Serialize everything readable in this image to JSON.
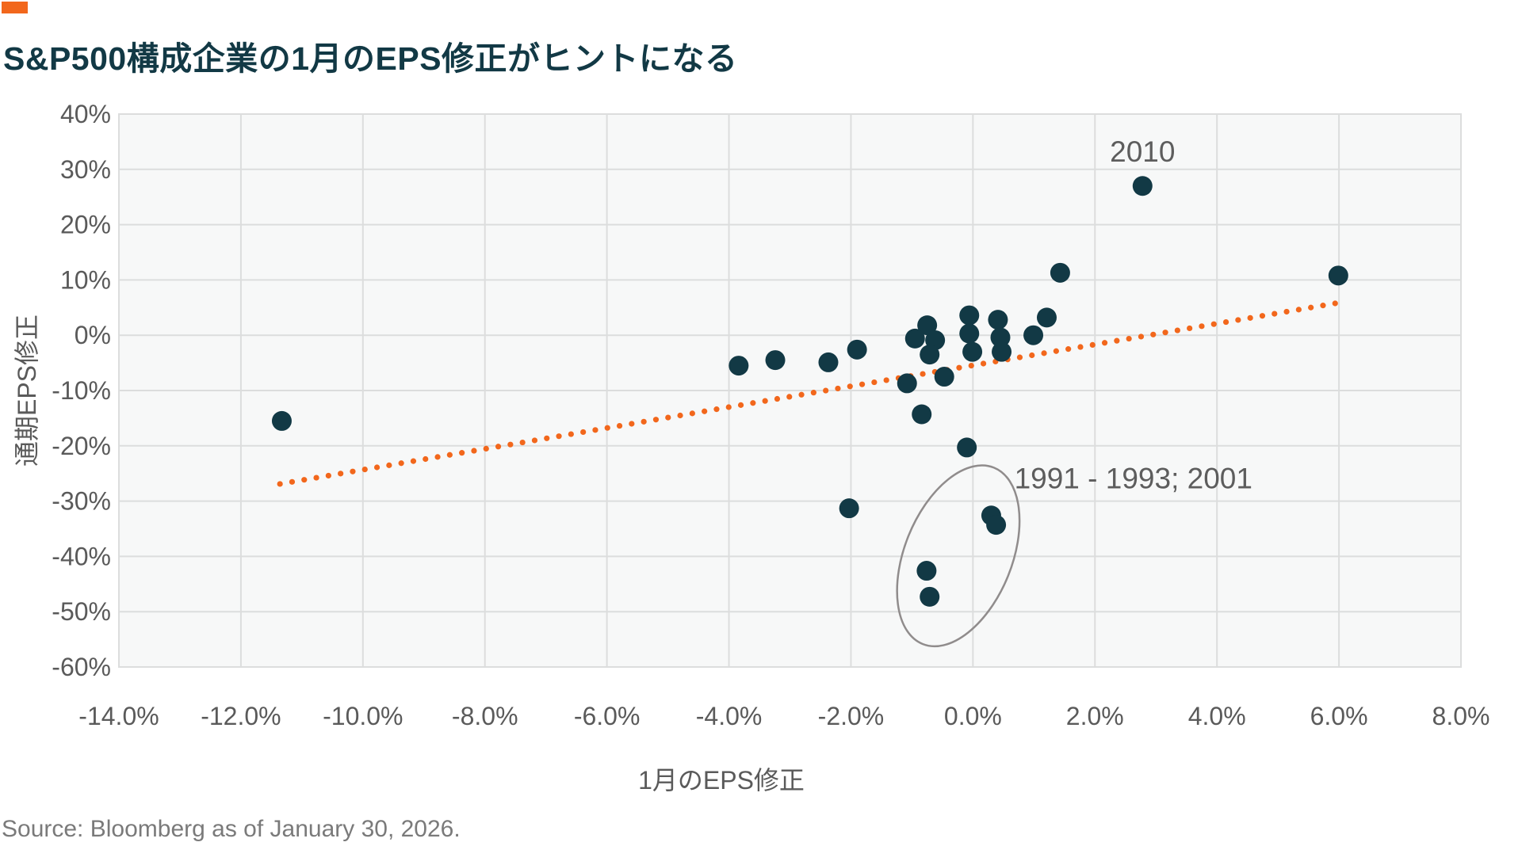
{
  "header": {
    "title": "S&P500構成企業の1月のEPS修正がヒントになる"
  },
  "source": "Source: Bloomberg as of January 30, 2026.",
  "colors": {
    "accent_orange": "#F2671C",
    "ink_navy": "#123945",
    "plot_bg": "#f7f8f8",
    "gridline": "#dcdddd",
    "axis_text": "#5a5a5a",
    "annotation_text": "#5d5d5d",
    "ellipse_stroke": "#908c8c",
    "source_text": "#7a7a7a"
  },
  "chart_data": {
    "type": "scatter",
    "title": "S&P500構成企業の1月のEPS修正がヒントになる",
    "xlabel": "1月のEPS修正",
    "ylabel": "通期EPS修正",
    "xlim": [
      -14,
      8
    ],
    "ylim": [
      -60,
      40
    ],
    "grid": true,
    "x_ticks": [
      -14,
      -12,
      -10,
      -8,
      -6,
      -4,
      -2,
      0,
      2,
      4,
      6,
      8
    ],
    "x_tick_labels": [
      "-14.0%",
      "-12.0%",
      "-10.0%",
      "-8.0%",
      "-6.0%",
      "-4.0%",
      "-2.0%",
      "0.0%",
      "2.0%",
      "4.0%",
      "6.0%",
      "8.0%"
    ],
    "y_ticks": [
      40,
      30,
      20,
      10,
      0,
      -10,
      -20,
      -30,
      -40,
      -50,
      -60
    ],
    "y_tick_labels": [
      "40%",
      "30%",
      "20%",
      "10%",
      "0%",
      "-10%",
      "-20%",
      "-30%",
      "-40%",
      "-50%",
      "-60%"
    ],
    "points": [
      [
        -11.33,
        -15.5
      ],
      [
        -3.84,
        -5.5
      ],
      [
        -3.24,
        -4.5
      ],
      [
        -2.37,
        -4.9
      ],
      [
        -1.9,
        -2.6
      ],
      [
        -2.03,
        -31.3
      ],
      [
        -1.08,
        -8.7
      ],
      [
        -0.47,
        -7.5
      ],
      [
        -0.84,
        -14.3
      ],
      [
        -0.1,
        -20.3
      ],
      [
        0.3,
        -32.6
      ],
      [
        0.38,
        -34.3
      ],
      [
        -0.76,
        -42.6
      ],
      [
        -0.71,
        -47.3
      ],
      [
        -0.75,
        1.8
      ],
      [
        -0.95,
        -0.6
      ],
      [
        -0.62,
        -0.9
      ],
      [
        -0.71,
        -3.5
      ],
      [
        -0.06,
        3.6
      ],
      [
        -0.06,
        0.3
      ],
      [
        -0.01,
        -3.0
      ],
      [
        0.41,
        2.8
      ],
      [
        0.45,
        -0.4
      ],
      [
        0.47,
        -3.0
      ],
      [
        0.99,
        0.0
      ],
      [
        1.21,
        3.2
      ],
      [
        1.43,
        11.3
      ],
      [
        2.78,
        27.0
      ],
      [
        5.99,
        10.8
      ]
    ],
    "point_radius_px": 12.5,
    "trendline": {
      "style": "dotted",
      "slope": 1.888,
      "intercept": -5.45,
      "x_start": -11.36,
      "x_end": 5.97,
      "dot_radius_px": 3.6,
      "dot_spacing_px": 15.3
    },
    "ellipse_annotation": {
      "cx": -0.24,
      "cy": -39.9,
      "rx_x": 0.88,
      "ry_y": 17.2,
      "rotate_deg": 22
    },
    "annotations": [
      {
        "text": "2010",
        "x": 2.78,
        "y": 33.1
      },
      {
        "text": "1991 - 1993; 2001",
        "x": 2.63,
        "y": -26.0
      }
    ],
    "legend": null
  }
}
